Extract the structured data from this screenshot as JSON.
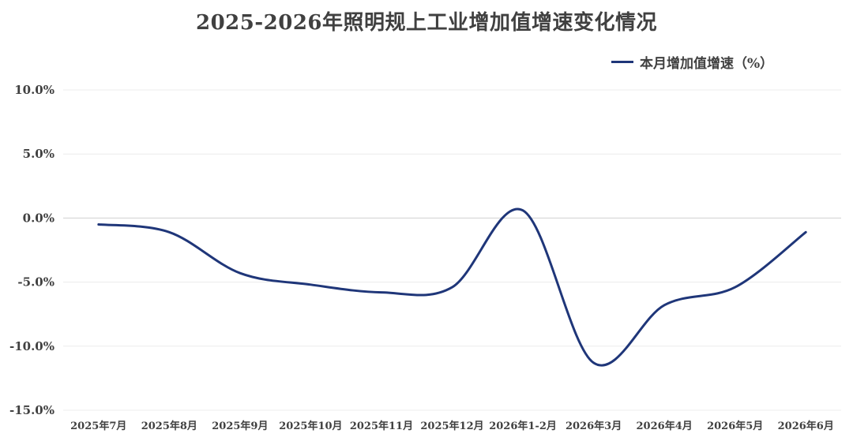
{
  "title": "2025-2026年照明规上工业增加值增速变化情况",
  "chart_data": {
    "type": "line",
    "title": "2025-2026年照明规上工业增加值增速变化情况",
    "categories": [
      "2025年7月",
      "2025年8月",
      "2025年9月",
      "2025年10月",
      "2025年11月",
      "2025年12月",
      "2026年1-2月",
      "2026年3月",
      "2026年4月",
      "2026年5月",
      "2026年6月"
    ],
    "series": [
      {
        "name": "本月增加值增速（%）",
        "color": "#1f3679",
        "values": [
          -0.5,
          -1.1,
          -4.3,
          -5.2,
          -5.8,
          -5.4,
          0.6,
          -11.3,
          -6.8,
          -5.4,
          -1.1
        ]
      }
    ],
    "yticks": [
      "10.0%",
      "5.0%",
      "0.0%",
      "-5.0%",
      "-10.0%",
      "-15.0%"
    ],
    "ylim": [
      -15,
      10
    ],
    "ylabel": "",
    "xlabel": "",
    "grid": true,
    "legend": "top-right",
    "smooth": true
  }
}
